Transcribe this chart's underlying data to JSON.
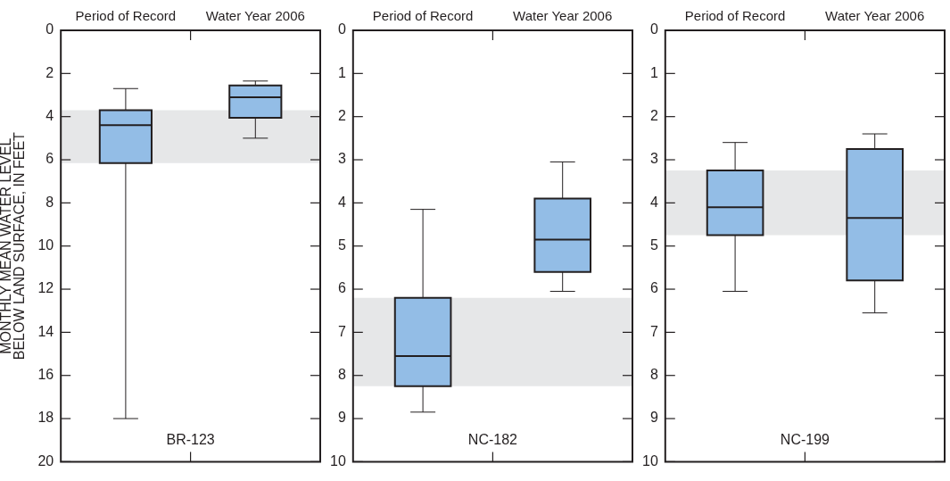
{
  "chart_data": [
    {
      "type": "box",
      "ylabel": "MONTHLY MEAN WATER LEVEL\nBELOW LAND SURFACE, IN FEET",
      "categories": [
        "Period of Record",
        "Water Year 2006"
      ],
      "color": "#93bde6",
      "boxes": [
        {
          "low": 2.7,
          "q1": 3.7,
          "median": 4.4,
          "q3": 6.15,
          "high": 18
        },
        {
          "low": 2.35,
          "q1": 2.55,
          "median": 3.1,
          "q3": 4.05,
          "high": 5.0
        }
      ],
      "ylim": [
        20,
        0
      ],
      "yticks": [
        0,
        2,
        4,
        6,
        8,
        10,
        12,
        14,
        16,
        18,
        20
      ],
      "bands": [
        {
          "axis": "y",
          "from": 3.7,
          "to": 6.15,
          "color": "#e6e7e8"
        }
      ],
      "annotations": [
        "BR-123"
      ],
      "grid": false
    },
    {
      "type": "box",
      "categories": [
        "Period of Record",
        "Water Year 2006"
      ],
      "color": "#93bde6",
      "boxes": [
        {
          "low": 4.15,
          "q1": 6.2,
          "median": 7.55,
          "q3": 8.25,
          "high": 8.85
        },
        {
          "low": 3.05,
          "q1": 3.9,
          "median": 4.85,
          "q3": 5.6,
          "high": 6.05
        }
      ],
      "ylim": [
        10,
        0
      ],
      "yticks": [
        0,
        1,
        2,
        3,
        4,
        5,
        6,
        7,
        8,
        9,
        10
      ],
      "bands": [
        {
          "axis": "y",
          "from": 6.2,
          "to": 8.25,
          "color": "#e6e7e8"
        }
      ],
      "annotations": [
        "NC-182"
      ],
      "grid": false
    },
    {
      "type": "box",
      "categories": [
        "Period of Record",
        "Water Year 2006"
      ],
      "color": "#93bde6",
      "boxes": [
        {
          "low": 2.6,
          "q1": 3.25,
          "median": 4.1,
          "q3": 4.75,
          "high": 6.05
        },
        {
          "low": 2.4,
          "q1": 2.75,
          "median": 4.35,
          "q3": 5.8,
          "high": 6.55
        }
      ],
      "ylim": [
        10,
        0
      ],
      "yticks": [
        0,
        1,
        2,
        3,
        4,
        5,
        6,
        7,
        8,
        9,
        10
      ],
      "bands": [
        {
          "axis": "y",
          "from": 3.25,
          "to": 4.75,
          "color": "#e6e7e8"
        }
      ],
      "annotations": [
        "NC-199"
      ],
      "grid": false
    }
  ]
}
